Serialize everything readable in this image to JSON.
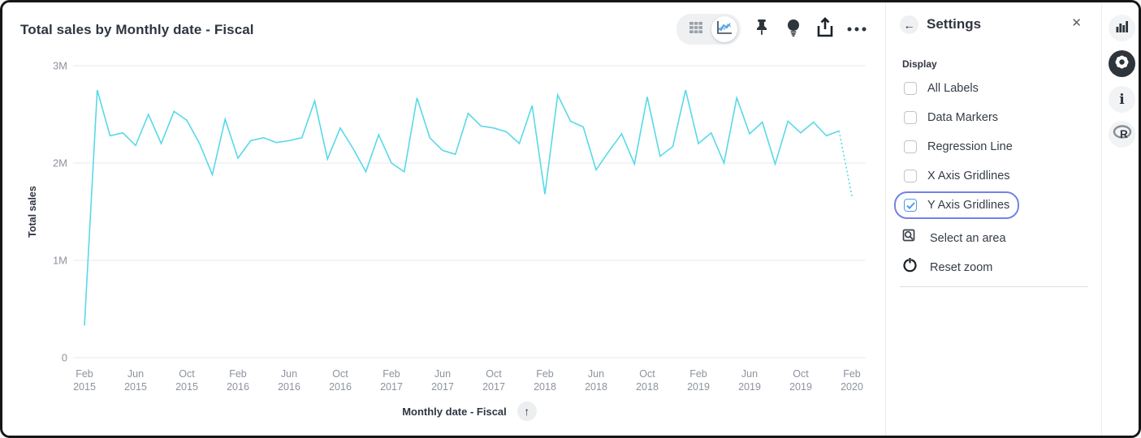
{
  "header": {
    "title": "Total sales by Monthly date - Fiscal",
    "toolbar_icons": [
      "table-icon",
      "line-chart-icon",
      "pin-icon",
      "lightbulb-icon",
      "share-icon",
      "ellipsis-icon"
    ]
  },
  "chart_data": {
    "type": "line",
    "title": "Total sales by Monthly date - Fiscal",
    "xlabel": "Monthly date - Fiscal",
    "ylabel": "Total sales",
    "ylim": [
      0,
      3000000
    ],
    "y_ticks": [
      {
        "label": "0",
        "value_millions": 0
      },
      {
        "label": "1M",
        "value_millions": 1
      },
      {
        "label": "2M",
        "value_millions": 2
      },
      {
        "label": "3M",
        "value_millions": 3
      }
    ],
    "x_ticks": [
      "Feb 2015",
      "Jun 2015",
      "Oct 2015",
      "Feb 2016",
      "Jun 2016",
      "Oct 2016",
      "Feb 2017",
      "Jun 2017",
      "Oct 2017",
      "Feb 2018",
      "Jun 2018",
      "Oct 2018",
      "Feb 2019",
      "Jun 2019",
      "Oct 2019",
      "Feb 2020"
    ],
    "x_tick_step_months": 4,
    "grid": "y-gridlines-only",
    "legend": "none",
    "line_color": "#58D9E8",
    "grid_color": "#E7E9EC",
    "last_segment_style": "dotted",
    "categories": [
      "Feb 2015",
      "Mar 2015",
      "Apr 2015",
      "May 2015",
      "Jun 2015",
      "Jul 2015",
      "Aug 2015",
      "Sep 2015",
      "Oct 2015",
      "Nov 2015",
      "Dec 2015",
      "Jan 2016",
      "Feb 2016",
      "Mar 2016",
      "Apr 2016",
      "May 2016",
      "Jun 2016",
      "Jul 2016",
      "Aug 2016",
      "Sep 2016",
      "Oct 2016",
      "Nov 2016",
      "Dec 2016",
      "Jan 2017",
      "Feb 2017",
      "Mar 2017",
      "Apr 2017",
      "May 2017",
      "Jun 2017",
      "Jul 2017",
      "Aug 2017",
      "Sep 2017",
      "Oct 2017",
      "Nov 2017",
      "Dec 2017",
      "Jan 2018",
      "Feb 2018",
      "Mar 2018",
      "Apr 2018",
      "May 2018",
      "Jun 2018",
      "Jul 2018",
      "Aug 2018",
      "Sep 2018",
      "Oct 2018",
      "Nov 2018",
      "Dec 2018",
      "Jan 2019",
      "Feb 2019",
      "Mar 2019",
      "Apr 2019",
      "May 2019",
      "Jun 2019",
      "Jul 2019",
      "Aug 2019",
      "Sep 2019",
      "Oct 2019",
      "Nov 2019",
      "Dec 2019",
      "Jan 2020",
      "Feb 2020"
    ],
    "values_millions": [
      0.33,
      2.75,
      2.28,
      2.31,
      2.18,
      2.5,
      2.2,
      2.53,
      2.44,
      2.2,
      1.88,
      2.45,
      2.05,
      2.23,
      2.26,
      2.21,
      2.23,
      2.26,
      2.64,
      2.04,
      2.36,
      2.15,
      1.91,
      2.29,
      2.0,
      1.91,
      2.67,
      2.26,
      2.13,
      2.09,
      2.51,
      2.38,
      2.36,
      2.32,
      2.2,
      2.59,
      1.68,
      2.7,
      2.43,
      2.37,
      1.93,
      2.12,
      2.3,
      1.99,
      2.68,
      2.07,
      2.17,
      2.75,
      2.2,
      2.31,
      2.0,
      2.67,
      2.3,
      2.42,
      1.99,
      2.43,
      2.31,
      2.42,
      2.28,
      2.33,
      1.66
    ]
  },
  "x_axis": {
    "label": "Monthly date - Fiscal",
    "sort_icon": "arrow-up-icon",
    "sort_glyph": "↑"
  },
  "settings_panel": {
    "title": "Settings",
    "back_glyph": "←",
    "close_glyph": "✕",
    "section_label": "Display",
    "checkboxes": [
      {
        "label": "All Labels",
        "checked": false,
        "focused": false
      },
      {
        "label": "Data Markers",
        "checked": false,
        "focused": false
      },
      {
        "label": "Regression Line",
        "checked": false,
        "focused": false
      },
      {
        "label": "X Axis Gridlines",
        "checked": false,
        "focused": false
      },
      {
        "label": "Y Axis Gridlines",
        "checked": true,
        "focused": true
      }
    ],
    "actions": [
      {
        "label": "Select an area",
        "icon": "select-area-icon"
      },
      {
        "label": "Reset zoom",
        "icon": "reset-zoom-icon"
      }
    ],
    "colors": {
      "checkbox_blue": "#509EE3",
      "focus_ring": "#7382E8"
    }
  },
  "right_rail": {
    "items": [
      {
        "icon": "bar-chart-icon",
        "active": false
      },
      {
        "icon": "gear-icon",
        "active": true
      },
      {
        "icon": "info-icon",
        "active": false,
        "glyph": "i"
      },
      {
        "icon": "r-logo-icon",
        "active": false,
        "glyph": "R"
      }
    ]
  }
}
